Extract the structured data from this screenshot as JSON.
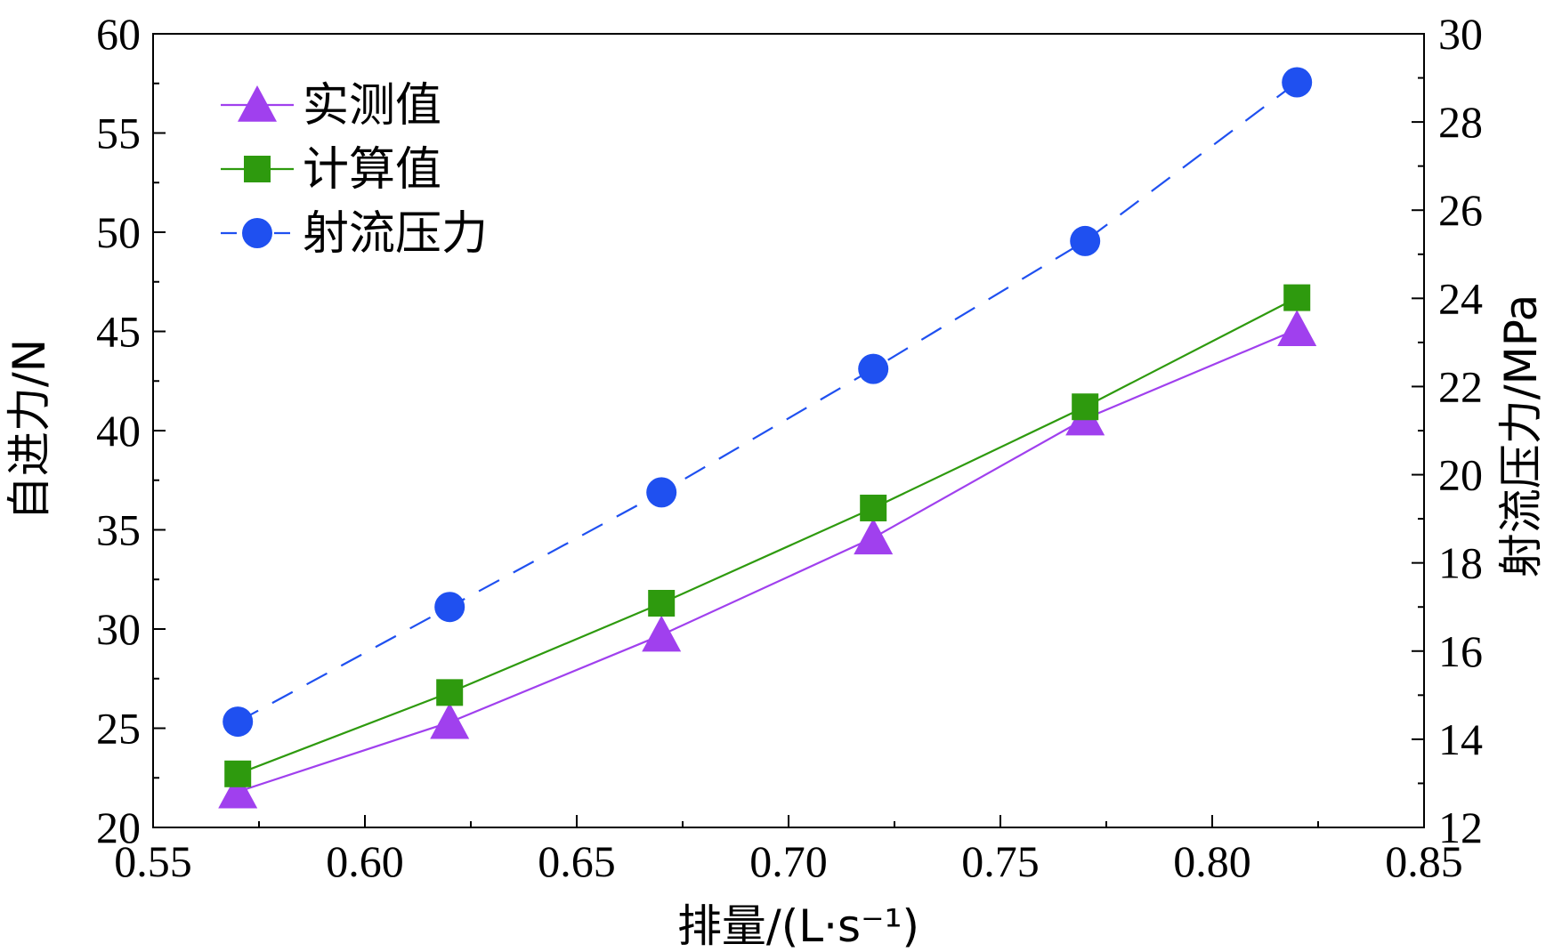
{
  "chart_data": {
    "type": "line",
    "x": [
      0.57,
      0.62,
      0.67,
      0.72,
      0.77,
      0.82
    ],
    "xlabel": "排量/(L·s⁻¹)",
    "ylabel_left": "自进力/N",
    "ylabel_right": "射流压力/MPa",
    "xlim": [
      0.55,
      0.85
    ],
    "ylim_left": [
      20,
      60
    ],
    "ylim_right": [
      12,
      30
    ],
    "x_ticks": [
      "0.55",
      "0.60",
      "0.65",
      "0.70",
      "0.75",
      "0.80",
      "0.85"
    ],
    "y_left_ticks": [
      "20",
      "25",
      "30",
      "35",
      "40",
      "45",
      "50",
      "55",
      "60"
    ],
    "y_right_ticks": [
      "12",
      "14",
      "16",
      "18",
      "20",
      "22",
      "24",
      "26",
      "28",
      "30"
    ],
    "grid": false,
    "legend_position": "top-left",
    "series": [
      {
        "name": "实测值",
        "axis": "left",
        "marker": "triangle",
        "line_style": "solid",
        "color": "#a040ee",
        "values": [
          21.8,
          25.3,
          29.7,
          34.6,
          40.6,
          45.1
        ]
      },
      {
        "name": "计算值",
        "axis": "left",
        "marker": "square",
        "line_style": "solid",
        "color": "#2e9a0e",
        "values": [
          22.7,
          26.8,
          31.3,
          36.1,
          41.2,
          46.7
        ]
      },
      {
        "name": "射流压力",
        "axis": "right",
        "marker": "circle",
        "line_style": "dashed",
        "color": "#1f50f0",
        "values": [
          14.4,
          17.0,
          19.6,
          22.4,
          25.3,
          28.9
        ]
      }
    ]
  }
}
